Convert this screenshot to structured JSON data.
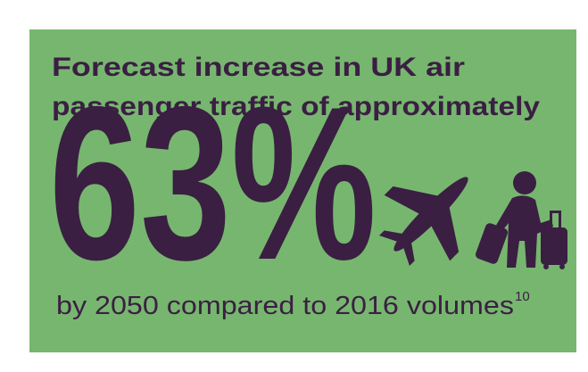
{
  "heading": {
    "lines": [
      "Forecast increase in UK air",
      "passenger traffic of approximately"
    ]
  },
  "figure": "63%",
  "caption": {
    "text": "by 2050 compared to 2016 volumes",
    "footnote": "10"
  }
}
